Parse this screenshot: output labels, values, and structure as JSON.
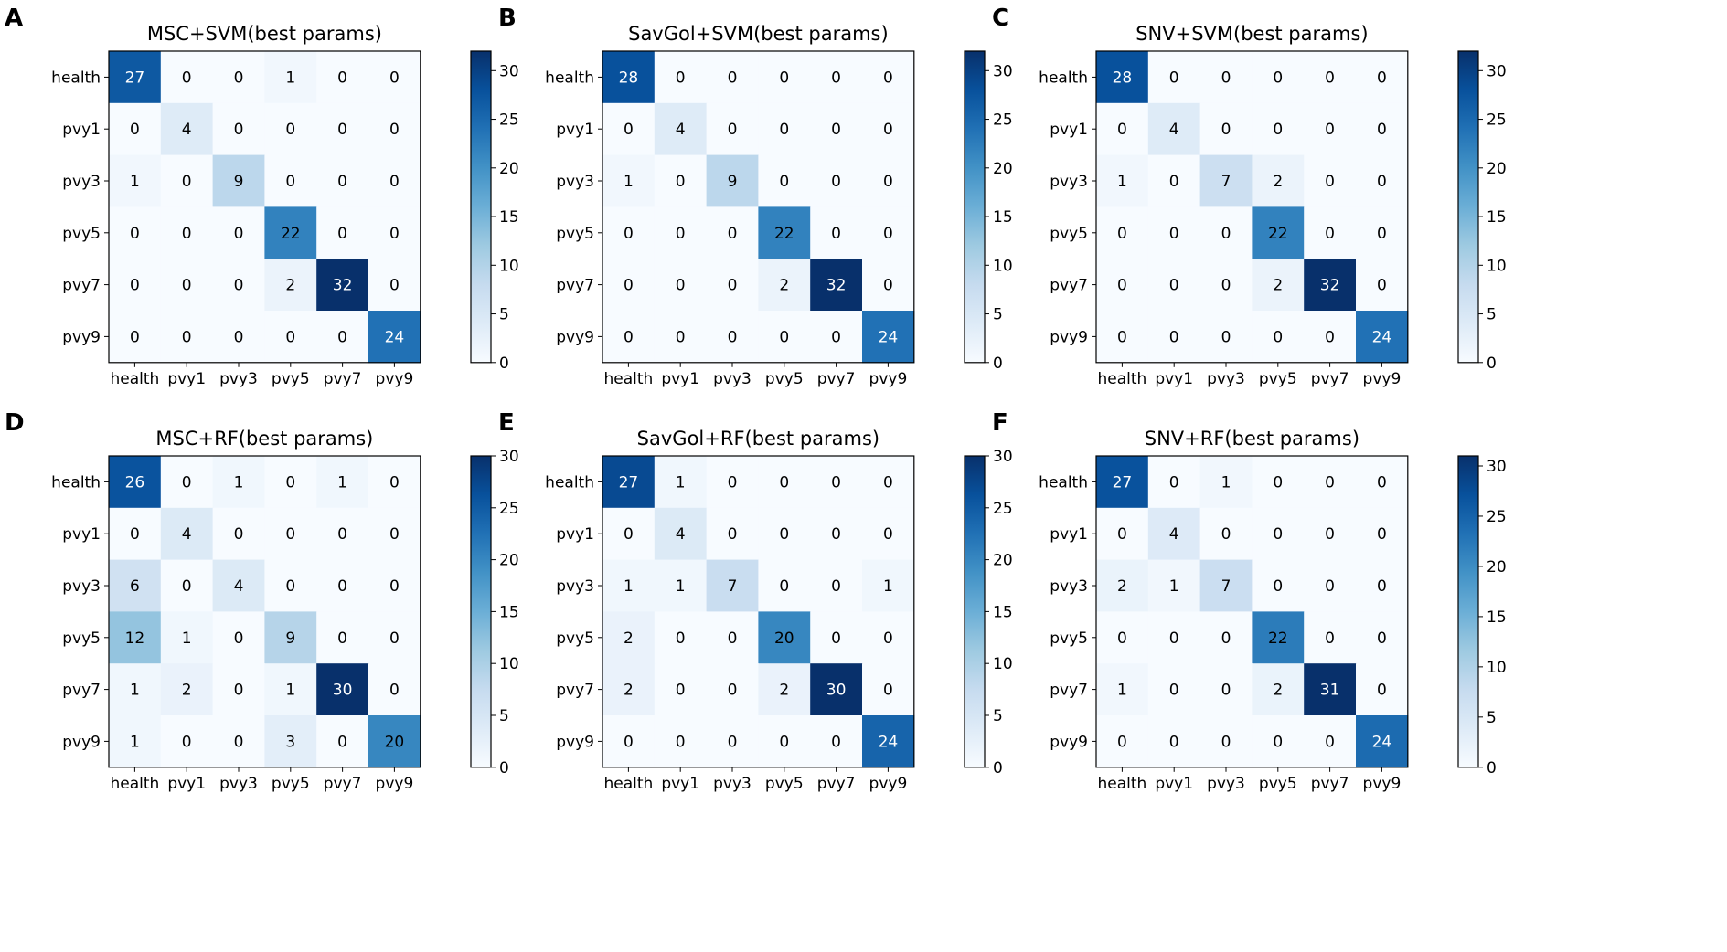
{
  "figure": {
    "colormap": [
      "#f7fbff",
      "#deebf7",
      "#c6dbef",
      "#9ecae1",
      "#6baed6",
      "#4292c6",
      "#2171b5",
      "#08519c",
      "#08306b"
    ],
    "text_dark": "#000000",
    "text_light": "#ffffff"
  },
  "chart_data": [
    {
      "panel": "A",
      "type": "heatmap",
      "title": "MSC+SVM(best params)",
      "row_labels": [
        "health",
        "pvy1",
        "pvy3",
        "pvy5",
        "pvy7",
        "pvy9"
      ],
      "col_labels": [
        "health",
        "pvy1",
        "pvy3",
        "pvy5",
        "pvy7",
        "pvy9"
      ],
      "matrix": [
        [
          27,
          0,
          0,
          1,
          0,
          0
        ],
        [
          0,
          4,
          0,
          0,
          0,
          0
        ],
        [
          1,
          0,
          9,
          0,
          0,
          0
        ],
        [
          0,
          0,
          0,
          22,
          0,
          0
        ],
        [
          0,
          0,
          0,
          2,
          32,
          0
        ],
        [
          0,
          0,
          0,
          0,
          0,
          24
        ]
      ],
      "vmin": 0,
      "vmax": 32,
      "colorbar_ticks": [
        0,
        5,
        10,
        15,
        20,
        25,
        30
      ]
    },
    {
      "panel": "B",
      "type": "heatmap",
      "title": "SavGol+SVM(best params)",
      "row_labels": [
        "health",
        "pvy1",
        "pvy3",
        "pvy5",
        "pvy7",
        "pvy9"
      ],
      "col_labels": [
        "health",
        "pvy1",
        "pvy3",
        "pvy5",
        "pvy7",
        "pvy9"
      ],
      "matrix": [
        [
          28,
          0,
          0,
          0,
          0,
          0
        ],
        [
          0,
          4,
          0,
          0,
          0,
          0
        ],
        [
          1,
          0,
          9,
          0,
          0,
          0
        ],
        [
          0,
          0,
          0,
          22,
          0,
          0
        ],
        [
          0,
          0,
          0,
          2,
          32,
          0
        ],
        [
          0,
          0,
          0,
          0,
          0,
          24
        ]
      ],
      "vmin": 0,
      "vmax": 32,
      "colorbar_ticks": [
        0,
        5,
        10,
        15,
        20,
        25,
        30
      ]
    },
    {
      "panel": "C",
      "type": "heatmap",
      "title": "SNV+SVM(best params)",
      "row_labels": [
        "health",
        "pvy1",
        "pvy3",
        "pvy5",
        "pvy7",
        "pvy9"
      ],
      "col_labels": [
        "health",
        "pvy1",
        "pvy3",
        "pvy5",
        "pvy7",
        "pvy9"
      ],
      "matrix": [
        [
          28,
          0,
          0,
          0,
          0,
          0
        ],
        [
          0,
          4,
          0,
          0,
          0,
          0
        ],
        [
          1,
          0,
          7,
          2,
          0,
          0
        ],
        [
          0,
          0,
          0,
          22,
          0,
          0
        ],
        [
          0,
          0,
          0,
          2,
          32,
          0
        ],
        [
          0,
          0,
          0,
          0,
          0,
          24
        ]
      ],
      "vmin": 0,
      "vmax": 32,
      "colorbar_ticks": [
        0,
        5,
        10,
        15,
        20,
        25,
        30
      ]
    },
    {
      "panel": "D",
      "type": "heatmap",
      "title": "MSC+RF(best params)",
      "row_labels": [
        "health",
        "pvy1",
        "pvy3",
        "pvy5",
        "pvy7",
        "pvy9"
      ],
      "col_labels": [
        "health",
        "pvy1",
        "pvy3",
        "pvy5",
        "pvy7",
        "pvy9"
      ],
      "matrix": [
        [
          26,
          0,
          1,
          0,
          1,
          0
        ],
        [
          0,
          4,
          0,
          0,
          0,
          0
        ],
        [
          6,
          0,
          4,
          0,
          0,
          0
        ],
        [
          12,
          1,
          0,
          9,
          0,
          0
        ],
        [
          1,
          2,
          0,
          1,
          30,
          0
        ],
        [
          1,
          0,
          0,
          3,
          0,
          20
        ]
      ],
      "vmin": 0,
      "vmax": 30,
      "colorbar_ticks": [
        0,
        5,
        10,
        15,
        20,
        25,
        30
      ]
    },
    {
      "panel": "E",
      "type": "heatmap",
      "title": "SavGol+RF(best params)",
      "row_labels": [
        "health",
        "pvy1",
        "pvy3",
        "pvy5",
        "pvy7",
        "pvy9"
      ],
      "col_labels": [
        "health",
        "pvy1",
        "pvy3",
        "pvy5",
        "pvy7",
        "pvy9"
      ],
      "matrix": [
        [
          27,
          1,
          0,
          0,
          0,
          0
        ],
        [
          0,
          4,
          0,
          0,
          0,
          0
        ],
        [
          1,
          1,
          7,
          0,
          0,
          1
        ],
        [
          2,
          0,
          0,
          20,
          0,
          0
        ],
        [
          2,
          0,
          0,
          2,
          30,
          0
        ],
        [
          0,
          0,
          0,
          0,
          0,
          24
        ]
      ],
      "vmin": 0,
      "vmax": 30,
      "colorbar_ticks": [
        0,
        5,
        10,
        15,
        20,
        25,
        30
      ]
    },
    {
      "panel": "F",
      "type": "heatmap",
      "title": "SNV+RF(best params)",
      "row_labels": [
        "health",
        "pvy1",
        "pvy3",
        "pvy5",
        "pvy7",
        "pvy9"
      ],
      "col_labels": [
        "health",
        "pvy1",
        "pvy3",
        "pvy5",
        "pvy7",
        "pvy9"
      ],
      "matrix": [
        [
          27,
          0,
          1,
          0,
          0,
          0
        ],
        [
          0,
          4,
          0,
          0,
          0,
          0
        ],
        [
          2,
          1,
          7,
          0,
          0,
          0
        ],
        [
          0,
          0,
          0,
          22,
          0,
          0
        ],
        [
          1,
          0,
          0,
          2,
          31,
          0
        ],
        [
          0,
          0,
          0,
          0,
          0,
          24
        ]
      ],
      "vmin": 0,
      "vmax": 31,
      "colorbar_ticks": [
        0,
        5,
        10,
        15,
        20,
        25,
        30
      ]
    }
  ]
}
